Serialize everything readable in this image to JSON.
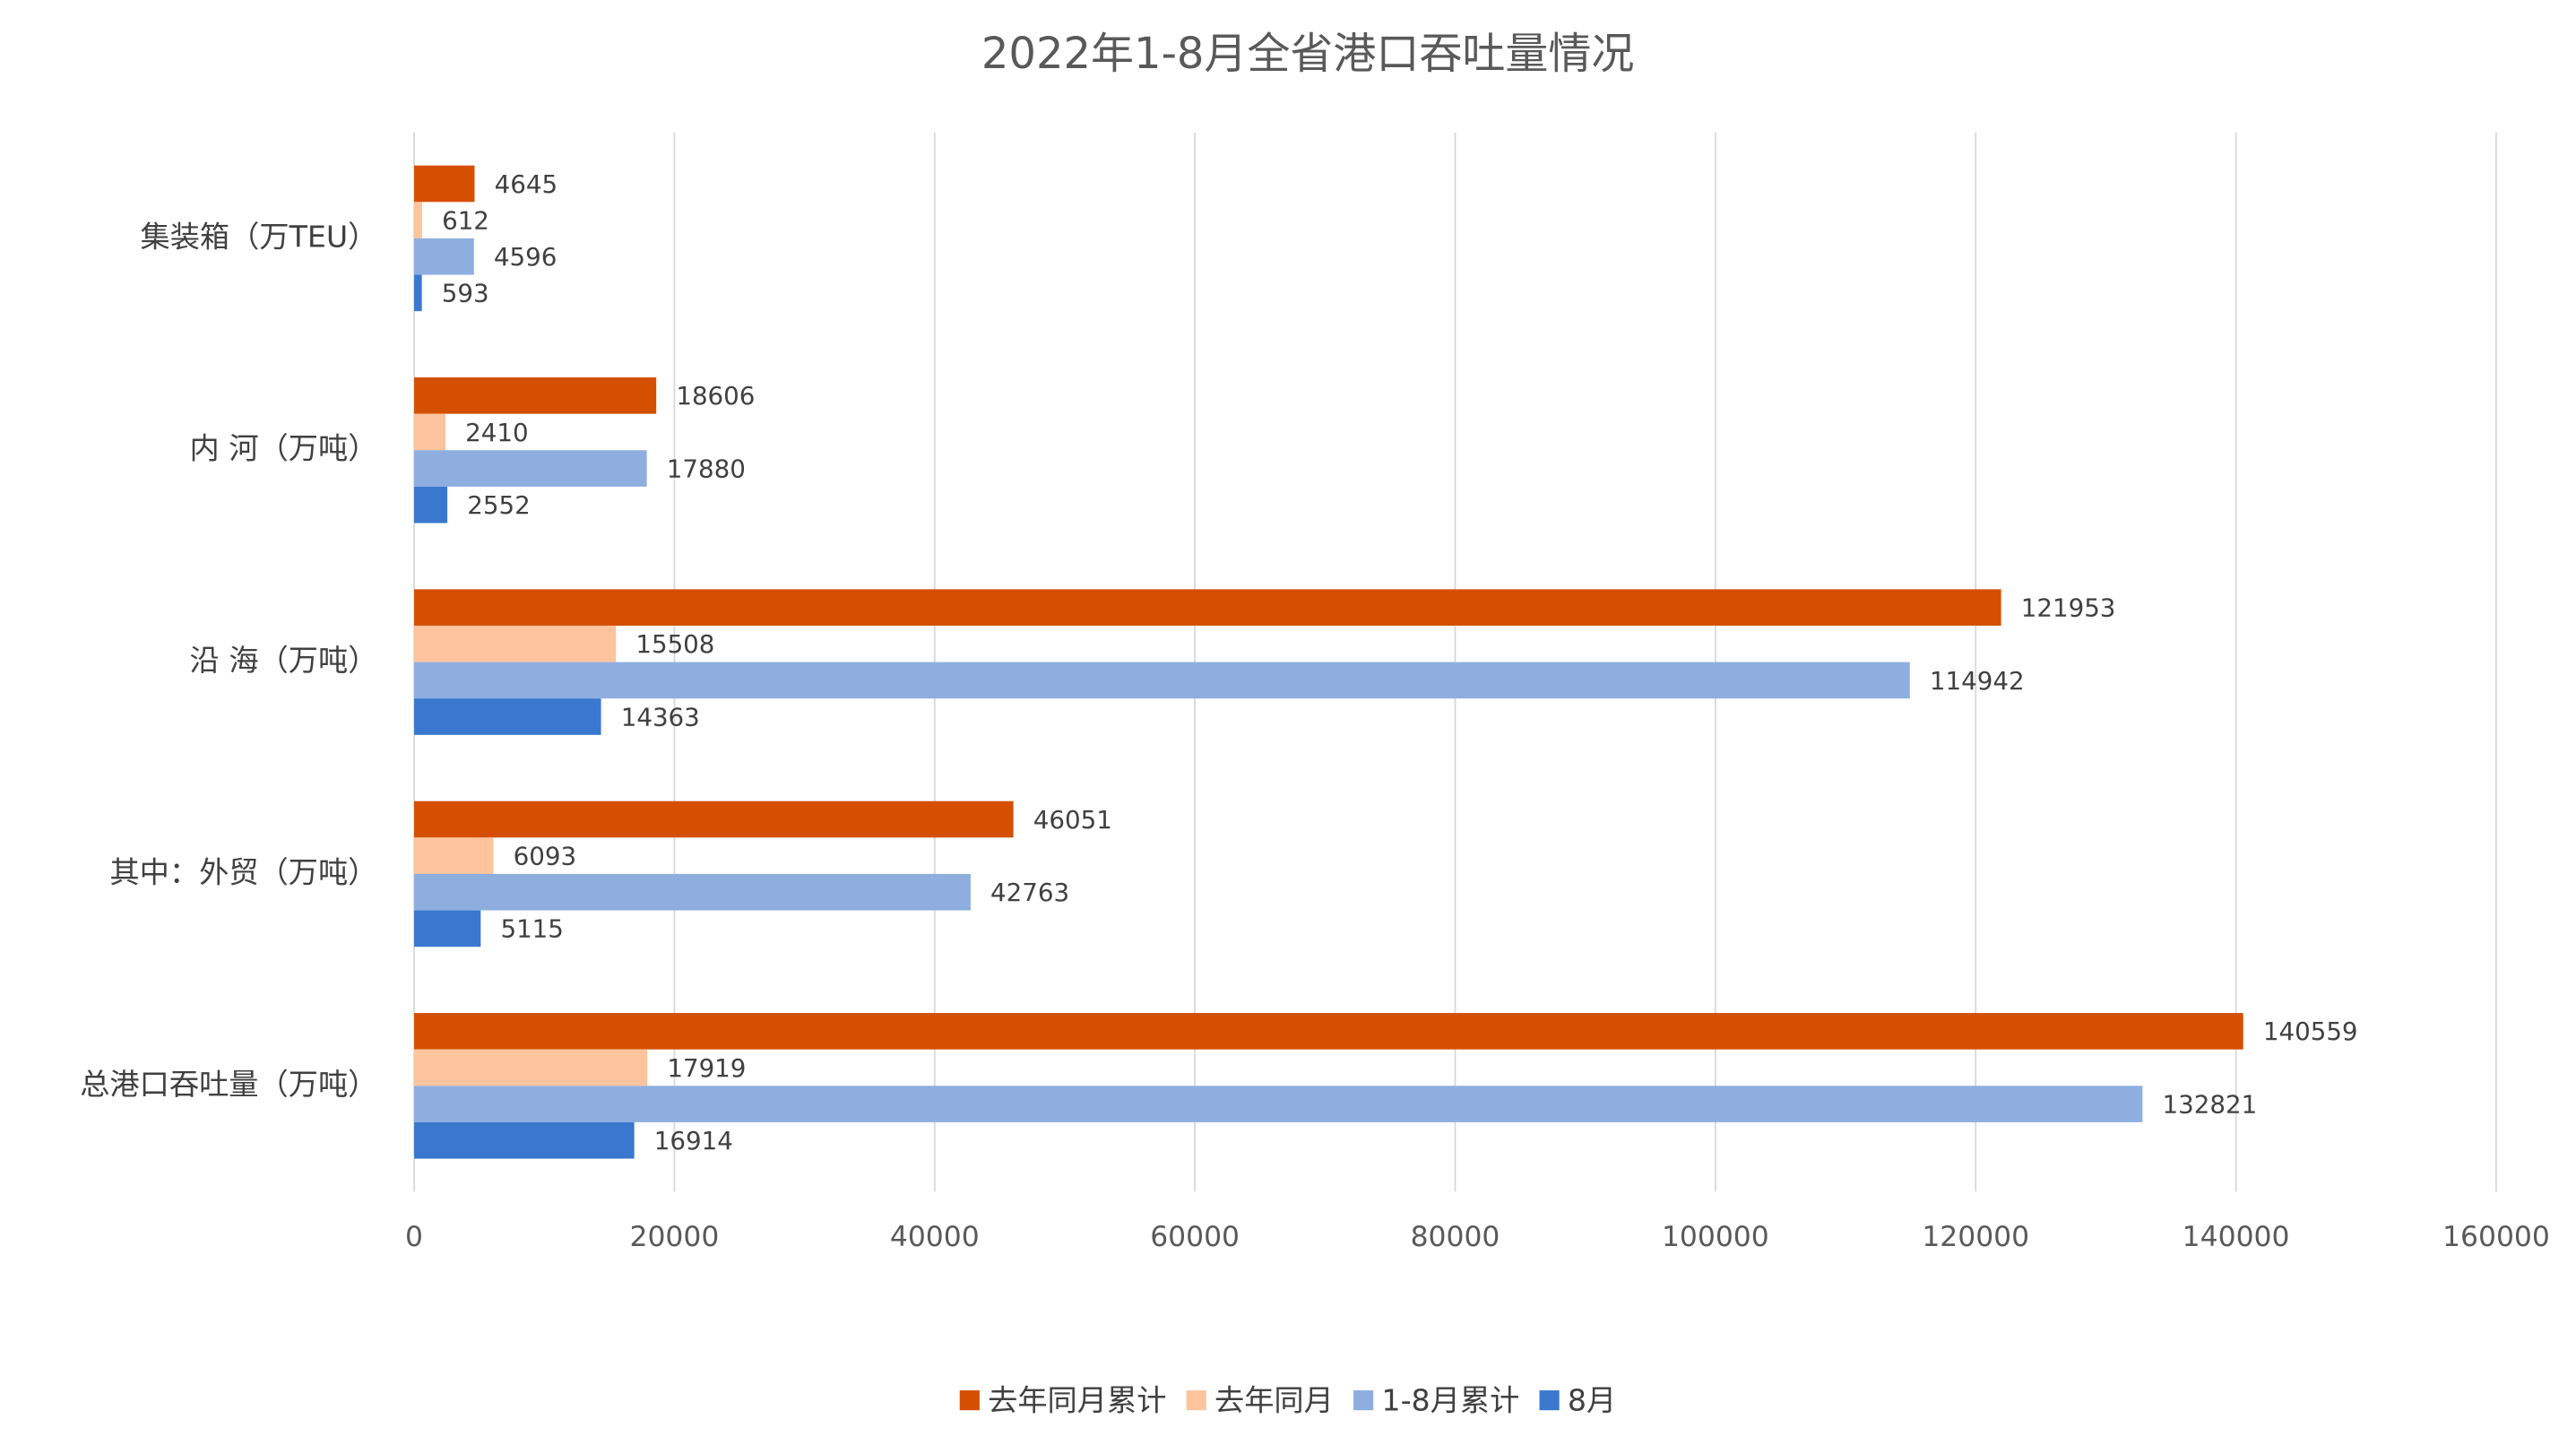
{
  "chart_data": {
    "type": "bar",
    "orientation": "horizontal",
    "title": "2022年1-8月全省港口吞吐量情况",
    "categories": [
      "集装箱（万TEU）",
      "内 河（万吨）",
      "沿 海（万吨）",
      "其中：外贸（万吨）",
      "总港口吞吐量（万吨）"
    ],
    "series": [
      {
        "name": "去年同月累计",
        "color": "#d44f00",
        "values": [
          4645,
          18606,
          121953,
          46051,
          140559
        ]
      },
      {
        "name": "去年同月",
        "color": "#fdc49e",
        "values": [
          612,
          2410,
          15508,
          6093,
          17919
        ]
      },
      {
        "name": "1-8月累计",
        "color": "#8eaee0",
        "values": [
          4596,
          17880,
          114942,
          42763,
          132821
        ]
      },
      {
        "name": "8月",
        "color": "#3a78cf",
        "values": [
          593,
          2552,
          14363,
          5115,
          16914
        ]
      }
    ],
    "xlim": [
      0,
      160000
    ],
    "xticks": [
      0,
      20000,
      40000,
      60000,
      80000,
      100000,
      120000,
      140000,
      160000
    ],
    "grid": true,
    "legend": "bottom"
  }
}
